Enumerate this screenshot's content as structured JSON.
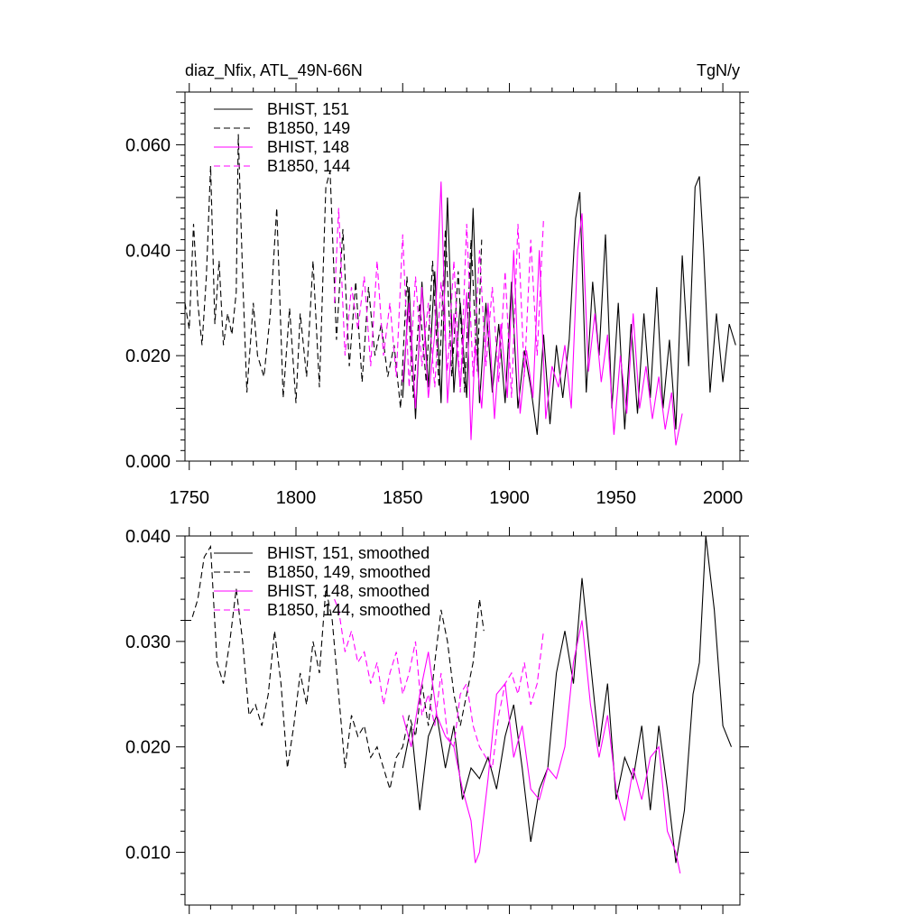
{
  "header": {
    "left_title": "diaz_Nfix, ATL_49N-66N",
    "right_units": "TgN/y"
  },
  "colors": {
    "black": "#000000",
    "magenta": "#ff00ff"
  },
  "chart_data": [
    {
      "type": "line",
      "panel": "top",
      "xlim": [
        1748,
        2008
      ],
      "ylim": [
        0.0,
        0.07
      ],
      "xticks": [
        1750,
        1800,
        1850,
        1900,
        1950,
        2000
      ],
      "yticks": [
        0.0,
        0.02,
        0.04,
        0.06
      ],
      "ytick_labels": [
        "0.000",
        "0.020",
        "0.040",
        "0.060"
      ],
      "legend": [
        "BHIST, 151",
        "B1850, 149",
        "BHIST, 148",
        "B1850, 144"
      ],
      "series": [
        {
          "name": "BHIST, 151",
          "color": "black",
          "dash": false,
          "x": [
            1850,
            1853,
            1856,
            1859,
            1862,
            1865,
            1868,
            1871,
            1874,
            1877,
            1880,
            1883,
            1886,
            1889,
            1892,
            1895,
            1898,
            1901,
            1904,
            1907,
            1910,
            1913,
            1916,
            1919,
            1922,
            1925,
            1928,
            1931,
            1933,
            1936,
            1939,
            1942,
            1945,
            1948,
            1951,
            1954,
            1957,
            1960,
            1963,
            1966,
            1969,
            1972,
            1975,
            1978,
            1981,
            1984,
            1987,
            1989,
            1991,
            1994,
            1997,
            2000,
            2003,
            2006
          ],
          "values": [
            0.012,
            0.033,
            0.008,
            0.034,
            0.014,
            0.036,
            0.011,
            0.05,
            0.013,
            0.03,
            0.012,
            0.048,
            0.011,
            0.03,
            0.013,
            0.026,
            0.011,
            0.034,
            0.01,
            0.021,
            0.014,
            0.005,
            0.024,
            0.007,
            0.022,
            0.012,
            0.023,
            0.046,
            0.051,
            0.013,
            0.034,
            0.02,
            0.043,
            0.01,
            0.03,
            0.006,
            0.026,
            0.009,
            0.028,
            0.012,
            0.033,
            0.01,
            0.023,
            0.006,
            0.039,
            0.018,
            0.052,
            0.054,
            0.04,
            0.013,
            0.028,
            0.015,
            0.026,
            0.022
          ]
        },
        {
          "name": "B1850, 149",
          "color": "black",
          "dash": true,
          "x": [
            1748,
            1750,
            1752,
            1754,
            1756,
            1758,
            1760,
            1762,
            1764,
            1766,
            1768,
            1770,
            1772,
            1773,
            1775,
            1777,
            1780,
            1782,
            1785,
            1788,
            1791,
            1794,
            1797,
            1800,
            1802,
            1805,
            1808,
            1811,
            1814,
            1816,
            1819,
            1822,
            1825,
            1828,
            1831,
            1834,
            1837,
            1840,
            1843,
            1846,
            1849,
            1852,
            1855,
            1858,
            1861,
            1864,
            1867,
            1870,
            1873,
            1876,
            1879,
            1882,
            1885,
            1887
          ],
          "values": [
            0.03,
            0.025,
            0.045,
            0.03,
            0.022,
            0.035,
            0.056,
            0.026,
            0.038,
            0.022,
            0.028,
            0.024,
            0.032,
            0.062,
            0.035,
            0.013,
            0.03,
            0.02,
            0.016,
            0.028,
            0.048,
            0.012,
            0.029,
            0.011,
            0.028,
            0.016,
            0.038,
            0.014,
            0.052,
            0.055,
            0.023,
            0.044,
            0.018,
            0.034,
            0.015,
            0.033,
            0.02,
            0.026,
            0.016,
            0.022,
            0.01,
            0.035,
            0.012,
            0.03,
            0.015,
            0.038,
            0.014,
            0.044,
            0.016,
            0.036,
            0.013,
            0.042,
            0.017,
            0.042
          ]
        },
        {
          "name": "BHIST, 148",
          "color": "magenta",
          "dash": false,
          "x": [
            1850,
            1853,
            1856,
            1859,
            1862,
            1865,
            1868,
            1871,
            1874,
            1877,
            1880,
            1882,
            1884,
            1887,
            1890,
            1893,
            1896,
            1899,
            1902,
            1905,
            1908,
            1911,
            1914,
            1917,
            1920,
            1923,
            1926,
            1929,
            1932,
            1934,
            1937,
            1940,
            1943,
            1946,
            1949,
            1952,
            1955,
            1958,
            1961,
            1964,
            1967,
            1970,
            1973,
            1976,
            1978,
            1981
          ],
          "values": [
            0.015,
            0.03,
            0.01,
            0.033,
            0.012,
            0.024,
            0.053,
            0.011,
            0.028,
            0.014,
            0.032,
            0.004,
            0.022,
            0.01,
            0.03,
            0.008,
            0.026,
            0.012,
            0.04,
            0.009,
            0.021,
            0.012,
            0.04,
            0.008,
            0.018,
            0.014,
            0.022,
            0.01,
            0.04,
            0.047,
            0.017,
            0.028,
            0.015,
            0.024,
            0.005,
            0.02,
            0.009,
            0.028,
            0.01,
            0.018,
            0.008,
            0.016,
            0.006,
            0.013,
            0.003,
            0.009
          ]
        },
        {
          "name": "B1850, 144",
          "color": "magenta",
          "dash": true,
          "x": [
            1818,
            1820,
            1823,
            1826,
            1829,
            1832,
            1835,
            1838,
            1841,
            1844,
            1847,
            1850,
            1853,
            1856,
            1859,
            1862,
            1865,
            1868,
            1871,
            1874,
            1877,
            1880,
            1883,
            1886,
            1889,
            1892,
            1895,
            1898,
            1901,
            1904,
            1907,
            1910,
            1913,
            1916
          ],
          "values": [
            0.03,
            0.048,
            0.02,
            0.033,
            0.025,
            0.035,
            0.018,
            0.038,
            0.02,
            0.03,
            0.016,
            0.043,
            0.014,
            0.035,
            0.018,
            0.03,
            0.014,
            0.034,
            0.017,
            0.038,
            0.013,
            0.045,
            0.016,
            0.04,
            0.018,
            0.033,
            0.015,
            0.036,
            0.012,
            0.045,
            0.016,
            0.042,
            0.02,
            0.046
          ]
        }
      ]
    },
    {
      "type": "line",
      "panel": "bottom",
      "xlim": [
        1748,
        2008
      ],
      "ylim": [
        0.005,
        0.04
      ],
      "yticks": [
        0.01,
        0.02,
        0.03,
        0.04
      ],
      "ytick_labels": [
        "0.010",
        "0.020",
        "0.030",
        "0.040"
      ],
      "legend": [
        "BHIST, 151, smoothed",
        "B1850, 149, smoothed",
        "BHIST, 148, smoothed",
        "B1850, 144, smoothed"
      ],
      "series": [
        {
          "name": "BHIST, 151, smoothed",
          "color": "black",
          "dash": false,
          "x": [
            1850,
            1854,
            1858,
            1862,
            1866,
            1870,
            1874,
            1878,
            1882,
            1886,
            1890,
            1894,
            1898,
            1902,
            1906,
            1910,
            1914,
            1918,
            1922,
            1926,
            1930,
            1934,
            1938,
            1942,
            1946,
            1950,
            1954,
            1958,
            1962,
            1966,
            1970,
            1974,
            1978,
            1982,
            1986,
            1989,
            1992,
            1996,
            2000,
            2004
          ],
          "values": [
            0.018,
            0.022,
            0.014,
            0.021,
            0.023,
            0.018,
            0.022,
            0.015,
            0.018,
            0.017,
            0.019,
            0.016,
            0.021,
            0.024,
            0.018,
            0.011,
            0.016,
            0.018,
            0.027,
            0.031,
            0.026,
            0.036,
            0.028,
            0.02,
            0.026,
            0.015,
            0.019,
            0.017,
            0.022,
            0.014,
            0.022,
            0.016,
            0.009,
            0.014,
            0.025,
            0.028,
            0.04,
            0.033,
            0.022,
            0.02
          ]
        },
        {
          "name": "B1850, 149, smoothed",
          "color": "black",
          "dash": true,
          "x": [
            1748,
            1751,
            1754,
            1757,
            1760,
            1763,
            1766,
            1769,
            1772,
            1775,
            1778,
            1781,
            1784,
            1787,
            1790,
            1793,
            1796,
            1799,
            1802,
            1805,
            1808,
            1811,
            1814,
            1817,
            1820,
            1823,
            1826,
            1829,
            1832,
            1835,
            1838,
            1841,
            1844,
            1847,
            1850,
            1853,
            1856,
            1859,
            1862,
            1865,
            1868,
            1871,
            1874,
            1877,
            1880,
            1883,
            1886,
            1888
          ],
          "values": [
            0.032,
            0.032,
            0.034,
            0.038,
            0.039,
            0.028,
            0.026,
            0.03,
            0.035,
            0.03,
            0.023,
            0.024,
            0.022,
            0.025,
            0.031,
            0.026,
            0.018,
            0.022,
            0.027,
            0.024,
            0.03,
            0.027,
            0.035,
            0.032,
            0.025,
            0.018,
            0.023,
            0.021,
            0.022,
            0.019,
            0.02,
            0.018,
            0.016,
            0.019,
            0.02,
            0.023,
            0.021,
            0.026,
            0.022,
            0.028,
            0.033,
            0.03,
            0.025,
            0.022,
            0.025,
            0.028,
            0.034,
            0.031
          ]
        },
        {
          "name": "BHIST, 148, smoothed",
          "color": "magenta",
          "dash": false,
          "x": [
            1850,
            1854,
            1858,
            1862,
            1866,
            1870,
            1874,
            1878,
            1882,
            1884,
            1886,
            1890,
            1894,
            1898,
            1902,
            1906,
            1910,
            1914,
            1918,
            1922,
            1926,
            1930,
            1934,
            1938,
            1942,
            1946,
            1950,
            1954,
            1958,
            1962,
            1966,
            1970,
            1974,
            1978,
            1980
          ],
          "values": [
            0.023,
            0.02,
            0.025,
            0.029,
            0.023,
            0.021,
            0.02,
            0.016,
            0.013,
            0.009,
            0.01,
            0.017,
            0.025,
            0.026,
            0.019,
            0.022,
            0.016,
            0.015,
            0.018,
            0.017,
            0.02,
            0.028,
            0.032,
            0.024,
            0.019,
            0.023,
            0.016,
            0.013,
            0.018,
            0.015,
            0.019,
            0.02,
            0.012,
            0.01,
            0.008
          ]
        },
        {
          "name": "B1850, 144, smoothed",
          "color": "magenta",
          "dash": true,
          "x": [
            1818,
            1820,
            1823,
            1826,
            1829,
            1832,
            1835,
            1838,
            1841,
            1844,
            1847,
            1850,
            1853,
            1856,
            1859,
            1862,
            1865,
            1868,
            1871,
            1874,
            1877,
            1880,
            1883,
            1886,
            1889,
            1892,
            1895,
            1898,
            1901,
            1904,
            1907,
            1910,
            1913,
            1916
          ],
          "values": [
            0.034,
            0.033,
            0.029,
            0.031,
            0.028,
            0.029,
            0.026,
            0.028,
            0.024,
            0.027,
            0.029,
            0.025,
            0.027,
            0.03,
            0.023,
            0.025,
            0.022,
            0.027,
            0.021,
            0.02,
            0.025,
            0.026,
            0.022,
            0.02,
            0.019,
            0.018,
            0.023,
            0.026,
            0.027,
            0.025,
            0.028,
            0.024,
            0.026,
            0.031
          ]
        }
      ]
    }
  ]
}
